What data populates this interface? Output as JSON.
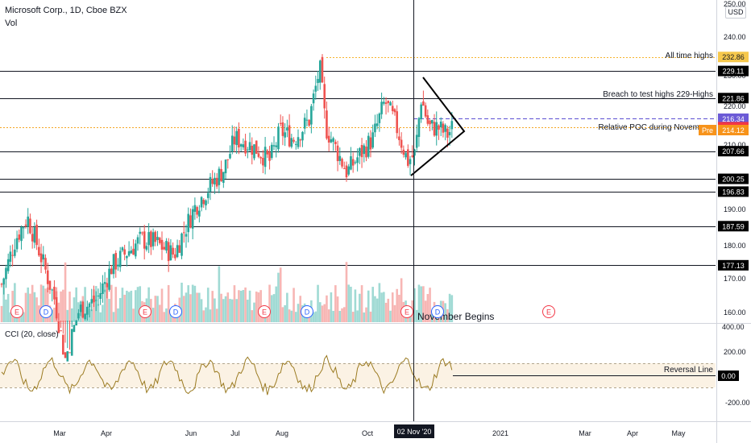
{
  "header": {
    "title": "Microsoft Corp., 1D, Cboe BZX",
    "volume_label": "Vol",
    "currency_unit": "USD",
    "top_axis_value": "250.00"
  },
  "price_axis": {
    "ticks": [
      "240.00",
      "230.00",
      "220.00",
      "210.00",
      "190.00",
      "180.00",
      "170.00",
      "160.00"
    ]
  },
  "levels": [
    {
      "value": "232.86",
      "label": "All time highs",
      "style": "dotted",
      "color": "#f6b42c",
      "badge": "#f6c84c",
      "text_color": "#131722"
    },
    {
      "value": "229.11",
      "label": "",
      "style": "solid",
      "color": "#131722",
      "badge": "#000000",
      "text_color": "#ffffff"
    },
    {
      "value": "221.86",
      "label": "Breach to test highs 229-Highs",
      "style": "solid",
      "color": "#131722",
      "badge": "#000000",
      "text_color": "#ffffff"
    },
    {
      "value": "216.34",
      "label": "",
      "style": "dashed",
      "color": "#5b4fd3",
      "badge": "#6b5ad6",
      "text_color": "#ffffff"
    },
    {
      "value": "214.07",
      "label": "Relative POC during Novem",
      "style": "dotted",
      "color": "#f5a623",
      "badge": "#f23645",
      "text_color": "#ffffff"
    },
    {
      "value": "207.66",
      "label": "",
      "style": "solid",
      "color": "#131722",
      "badge": "#000000",
      "text_color": "#ffffff"
    },
    {
      "value": "200.25",
      "label": "",
      "style": "solid",
      "color": "#131722",
      "badge": "#000000",
      "text_color": "#ffffff"
    },
    {
      "value": "196.83",
      "label": "",
      "style": "solid",
      "color": "#131722",
      "badge": "#000000",
      "text_color": "#ffffff"
    },
    {
      "value": "187.59",
      "label": "",
      "style": "solid",
      "color": "#131722",
      "badge": "#000000",
      "text_color": "#ffffff"
    },
    {
      "value": "177.13",
      "label": "",
      "style": "solid",
      "color": "#131722",
      "badge": "#000000",
      "text_color": "#ffffff"
    }
  ],
  "premarket": {
    "tag": "Pre",
    "value": "214.12",
    "color": "#f7931a"
  },
  "cci": {
    "label": "CCI (20, close)",
    "axis": [
      "400.00",
      "200.00",
      "0.00",
      "-200.00"
    ],
    "reversal_line_label": "Reversal Line",
    "reversal_line_value": "0.00"
  },
  "annotation_november": "November Begins",
  "event_markers": [
    {
      "letter": "E",
      "type": "earnings"
    },
    {
      "letter": "D",
      "type": "dividend"
    },
    {
      "letter": "E",
      "type": "earnings"
    },
    {
      "letter": "D",
      "type": "dividend"
    },
    {
      "letter": "E",
      "type": "earnings"
    },
    {
      "letter": "D",
      "type": "dividend"
    },
    {
      "letter": "E",
      "type": "earnings"
    },
    {
      "letter": "D",
      "type": "dividend"
    },
    {
      "letter": "E",
      "type": "earnings"
    }
  ],
  "time_axis": {
    "labels": [
      "Mar",
      "Apr",
      "Jun",
      "Jul",
      "Aug",
      "Oct",
      "2021",
      "Mar",
      "Apr",
      "May"
    ],
    "crosshair_label": "02 Nov '20"
  },
  "colors": {
    "up": "#26a69a",
    "down": "#ef5350",
    "cci_line": "#9b7b22",
    "cci_band": "#fbf2e4"
  },
  "chart_data": {
    "type": "candlestick",
    "title": "Microsoft Corp., 1D, Cboe BZX",
    "y_unit": "USD",
    "ylim": [
      156,
      250
    ],
    "horizontal_levels": [
      232.86,
      229.11,
      221.86,
      216.34,
      214.07,
      207.66,
      200.25,
      196.83,
      187.59,
      177.13
    ],
    "price_path": [
      {
        "date": "2020-02-03",
        "close": 172
      },
      {
        "date": "2020-02-12",
        "close": 184
      },
      {
        "date": "2020-02-20",
        "close": 190
      },
      {
        "date": "2020-02-27",
        "close": 182
      },
      {
        "date": "2020-03-09",
        "close": 168
      },
      {
        "date": "2020-03-16",
        "close": 152
      },
      {
        "date": "2020-03-25",
        "close": 165
      },
      {
        "date": "2020-04-06",
        "close": 168
      },
      {
        "date": "2020-04-16",
        "close": 177
      },
      {
        "date": "2020-04-24",
        "close": 180
      },
      {
        "date": "2020-05-05",
        "close": 184
      },
      {
        "date": "2020-05-15",
        "close": 183
      },
      {
        "date": "2020-05-27",
        "close": 180
      },
      {
        "date": "2020-06-01",
        "close": 185
      },
      {
        "date": "2020-06-10",
        "close": 193
      },
      {
        "date": "2020-06-19",
        "close": 198
      },
      {
        "date": "2020-06-29",
        "close": 203
      },
      {
        "date": "2020-07-06",
        "close": 211
      },
      {
        "date": "2020-07-13",
        "close": 210
      },
      {
        "date": "2020-07-21",
        "close": 208
      },
      {
        "date": "2020-07-29",
        "close": 205
      },
      {
        "date": "2020-08-05",
        "close": 213
      },
      {
        "date": "2020-08-14",
        "close": 211
      },
      {
        "date": "2020-08-24",
        "close": 216
      },
      {
        "date": "2020-08-31",
        "close": 230
      },
      {
        "date": "2020-09-04",
        "close": 214
      },
      {
        "date": "2020-09-11",
        "close": 208
      },
      {
        "date": "2020-09-18",
        "close": 202
      },
      {
        "date": "2020-09-25",
        "close": 206
      },
      {
        "date": "2020-10-05",
        "close": 211
      },
      {
        "date": "2020-10-13",
        "close": 221
      },
      {
        "date": "2020-10-20",
        "close": 215
      },
      {
        "date": "2020-10-28",
        "close": 205
      },
      {
        "date": "2020-11-02",
        "close": 207
      },
      {
        "date": "2020-11-06",
        "close": 222
      },
      {
        "date": "2020-11-11",
        "close": 214
      },
      {
        "date": "2020-11-17",
        "close": 214
      },
      {
        "date": "2020-11-23",
        "close": 212
      },
      {
        "date": "2020-11-27",
        "close": 214
      }
    ]
  }
}
